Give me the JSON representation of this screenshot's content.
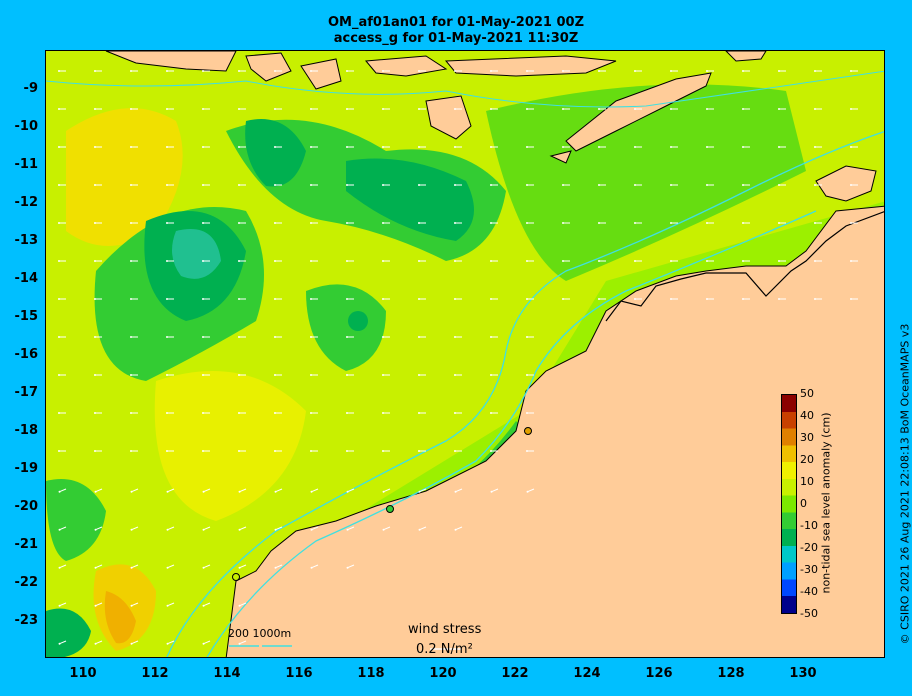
{
  "title": {
    "line1": "OM_af01an01 for 01-May-2021 00Z",
    "line2": "access_g for 01-May-2021 11:30Z"
  },
  "axes": {
    "y_ticks": [
      "-9",
      "-10",
      "-11",
      "-12",
      "-13",
      "-14",
      "-15",
      "-16",
      "-17",
      "-18",
      "-19",
      "-20",
      "-21",
      "-22",
      "-23"
    ],
    "x_ticks": [
      "110",
      "112",
      "114",
      "116",
      "118",
      "120",
      "122",
      "124",
      "126",
      "128",
      "130"
    ]
  },
  "colorbar": {
    "label": "non-tidal sea level anomaly (cm)",
    "ticks": [
      "50",
      "40",
      "30",
      "20",
      "10",
      "0",
      "-10",
      "-20",
      "-30",
      "-40",
      "-50"
    ],
    "colors": [
      "#00008B",
      "#0047FF",
      "#00A0FF",
      "#00C8C8",
      "#00B050",
      "#33CC33",
      "#7CE800",
      "#C8F000",
      "#F0F000",
      "#F0C000",
      "#E08000",
      "#C84000",
      "#8B0000"
    ]
  },
  "legend": {
    "wind_stress_label": "wind stress",
    "wind_stress_value": "0.2 N/m²",
    "contour_labels": "200  1000m"
  },
  "credit": "© CSIRO 2021  26 Aug 2021 22:08:13 BoM OceanMAPS v3",
  "palette": {
    "land": "#FFCC99",
    "background": "#00BFFF",
    "isobath": "#40E0E0"
  }
}
